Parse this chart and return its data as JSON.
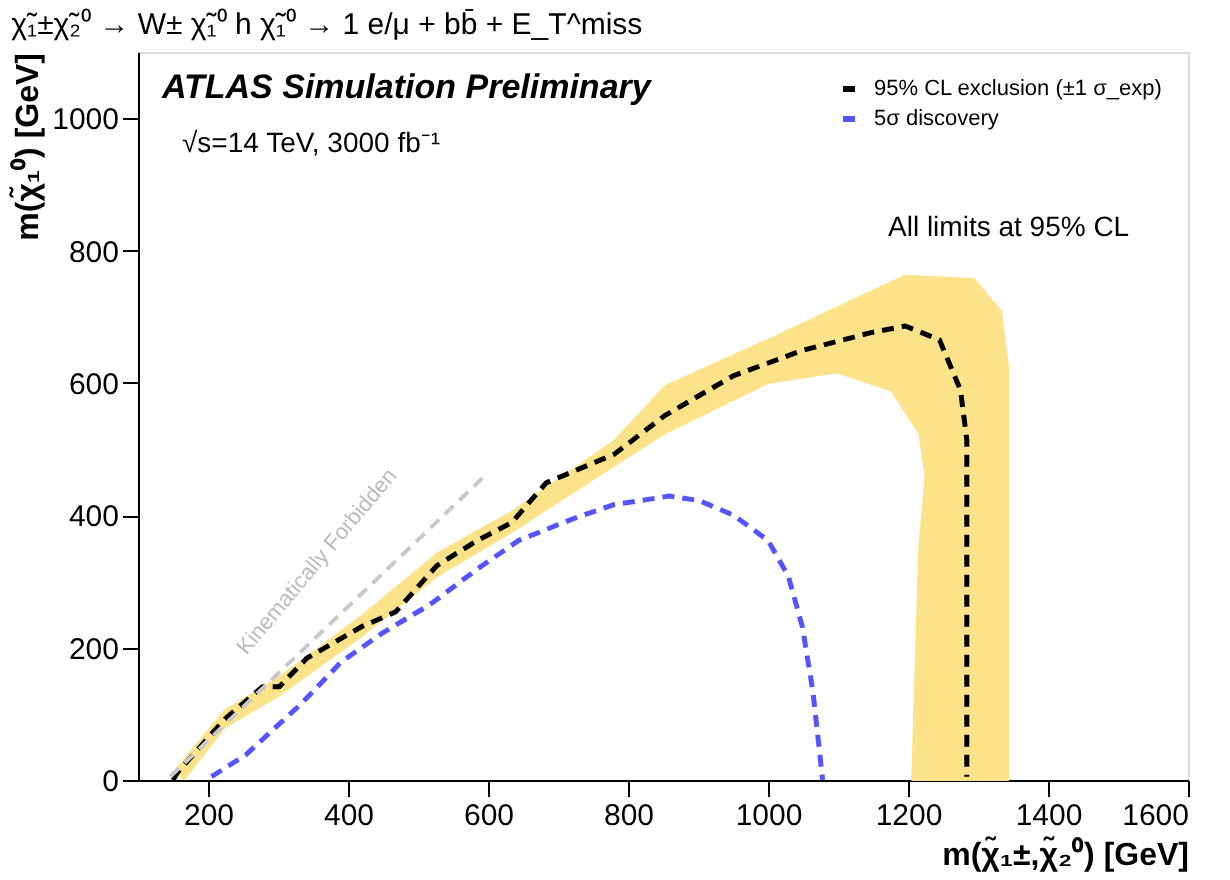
{
  "chart_data": {
    "type": "line",
    "title": "χ̃₁±χ̃₂⁰ → W± χ̃₁⁰ h χ̃₁⁰ → 1 e/μ + bb̄ + E_T^miss",
    "xlabel": "m(χ̃₁±,χ̃₂⁰) [GeV]",
    "ylabel": "m(χ̃₁⁰) [GeV]",
    "xlim": [
      100,
      1600
    ],
    "ylim": [
      0,
      1100
    ],
    "xticks": [
      200,
      400,
      600,
      800,
      1000,
      1200,
      1400,
      1600
    ],
    "yticks": [
      0,
      200,
      400,
      600,
      800,
      1000
    ],
    "grid": false,
    "legend": "top right",
    "annotations": [
      "ATLAS Simulation Preliminary",
      "√s=14 TeV, 3000 fb⁻¹",
      "All limits at 95% CL",
      "Kinematically Forbidden"
    ],
    "series": [
      {
        "type": "area",
        "color": "#fce38a",
        "x": [
          150,
          224,
          302,
          420,
          527,
          634,
          780,
          853,
          1000,
          1196,
          1294,
          1333,
          1343,
          1343,
          1206,
          1216,
          1225,
          1216,
          1176,
          1098,
          1000,
          853,
          780,
          634,
          527,
          420,
          302,
          224,
          165
        ],
        "values": [
          10,
          105,
          155,
          248,
          342,
          405,
          512,
          595,
          665,
          762,
          757,
          708,
          622,
          0,
          0,
          351,
          459,
          524,
          589,
          616,
          600,
          524,
          475,
          375,
          308,
          218,
          128,
          80,
          0
        ]
      },
      {
        "name": "95% CL exclusion (±1 σ_exp)",
        "color": "#000000",
        "line_style": "dashed",
        "x": [
          150,
          156,
          224,
          278,
          302,
          341,
          420,
          468,
          527,
          585,
          634,
          683,
          780,
          853,
          951,
          1049,
          1147,
          1196,
          1245,
          1275,
          1284,
          1284,
          1284,
          1284
        ],
        "values": [
          0,
          11,
          92,
          141,
          141,
          184,
          232,
          254,
          324,
          362,
          389,
          449,
          492,
          551,
          611,
          649,
          676,
          686,
          665,
          589,
          514,
          351,
          189,
          5
        ]
      },
      {
        "name": "5σ discovery",
        "color": "#5555ff",
        "line_style": "dashed",
        "x": [
          205,
          254,
          332,
          390,
          449,
          517,
          585,
          644,
          722,
          780,
          859,
          902,
          951,
          1000,
          1029,
          1049,
          1064,
          1073,
          1078
        ],
        "values": [
          5,
          38,
          114,
          178,
          222,
          265,
          319,
          362,
          395,
          416,
          429,
          422,
          400,
          362,
          308,
          232,
          135,
          49,
          0
        ]
      },
      {
        "color": "#c8c8c8",
        "line_style": "dashed",
        "x": [
          146,
          595
        ],
        "values": [
          5,
          459
        ]
      }
    ]
  }
}
